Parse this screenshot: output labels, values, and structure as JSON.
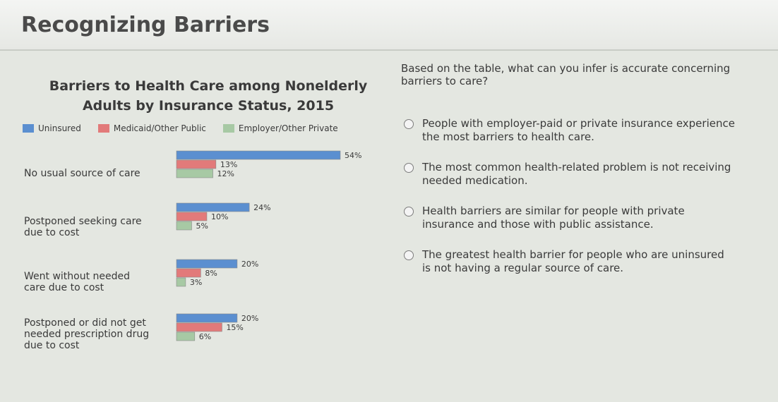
{
  "header": {
    "title": "Recognizing Barriers"
  },
  "chart_data": {
    "type": "bar",
    "orientation": "horizontal",
    "title_line1": "Barriers to Health Care among Nonelderly",
    "title_line2": "Adults by Insurance Status, 2015",
    "categories": [
      "No usual source of care",
      "Postponed seeking care\ndue to cost",
      "Went without needed\ncare due to cost",
      "Postponed or did not get\nneeded prescription drug\ndue to cost"
    ],
    "series": [
      {
        "name": "Uninsured",
        "color": "#5b8fd0",
        "values": [
          54,
          24,
          20,
          20
        ],
        "labels": [
          "54%",
          "24%",
          "20%",
          "20%"
        ]
      },
      {
        "name": "Medicaid/Other Public",
        "color": "#e27a7a",
        "values": [
          13,
          10,
          8,
          15
        ],
        "labels": [
          "13%",
          "10%",
          "8%",
          "15%"
        ]
      },
      {
        "name": "Employer/Other Private",
        "color": "#a7c9a4",
        "values": [
          12,
          5,
          3,
          6
        ],
        "labels": [
          "12%",
          "5%",
          "3%",
          "6%"
        ]
      }
    ],
    "legend_position": "top",
    "xlim": [
      0,
      54
    ]
  },
  "question": {
    "prompt": "Based on the table, what can you infer is accurate concerning barriers to care?",
    "options": [
      "People with employer-paid or private insurance experience the most barriers to health care.",
      "The most common health-related problem is not receiving needed medication.",
      "Health barriers are similar for people with private insurance and those with public assistance.",
      "The greatest health barrier for people who are uninsured is not having a regular source of care."
    ]
  }
}
